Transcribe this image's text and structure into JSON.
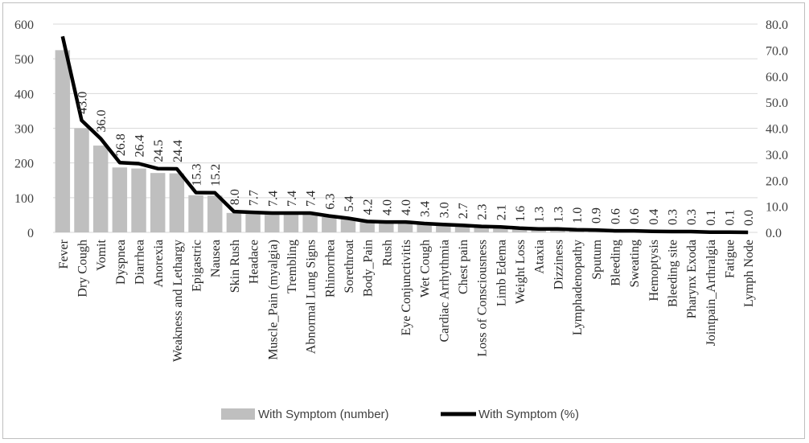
{
  "chart_data": {
    "type": "bar",
    "title": "",
    "xlabel": "",
    "ylabel": "",
    "y2label": "",
    "ylim": [
      0,
      600
    ],
    "y2lim": [
      0,
      80
    ],
    "yticks": [
      "0",
      "100",
      "200",
      "300",
      "400",
      "500",
      "600"
    ],
    "y2ticks": [
      "0.0",
      "10.0",
      "20.0",
      "30.0",
      "40.0",
      "50.0",
      "60.0",
      "70.0",
      "80.0"
    ],
    "grid": true,
    "legend_position": "bottom",
    "colors": {
      "bar": "#bfbfbf",
      "line": "#000000",
      "grid": "#d9d9d9"
    },
    "categories": [
      "Fever",
      "Dry Cough",
      "Vomit",
      "Dyspnea",
      "Diarrhea",
      "Anorexia",
      "Weakness and Lethargy",
      "Epigastric",
      "Nausea",
      "Skin Rush",
      "Headace",
      "Muscle_Pain (myalgia)",
      "Trembling",
      "Abnormal Lung Signs",
      "Rhinorrhea",
      "Sorethroat",
      "Body_Pain",
      "Rush",
      "Eye Conjunctivitis",
      "Wet Cough",
      "Cardiac Arrhythmia",
      "Chest pain",
      "Loss of Consciousness",
      "Limb Edema",
      "Weight Loss",
      "Ataxia",
      "Dizziness",
      "Lymphadenopathy",
      "Sputum",
      "Bleeding",
      "Sweating",
      "Hemoptysis",
      "Bleeding site",
      "Pharynx Exoda",
      "Jointpain_Arthralgia",
      "Fatigue",
      "Lymph Node"
    ],
    "series": [
      {
        "name": "With Symptom (number)",
        "type": "bar",
        "axis": "left",
        "values": [
          525,
          300,
          250,
          187,
          184,
          171,
          170,
          107,
          106,
          56,
          54,
          52,
          52,
          52,
          44,
          38,
          29,
          28,
          28,
          24,
          21,
          19,
          16,
          15,
          11,
          9,
          9,
          7,
          6,
          4,
          4,
          3,
          2,
          2,
          1,
          1,
          0
        ]
      },
      {
        "name": "With Symptom (%)",
        "type": "line",
        "axis": "right",
        "values": [
          75.3,
          43.0,
          36.0,
          26.8,
          26.4,
          24.5,
          24.4,
          15.3,
          15.2,
          8.0,
          7.7,
          7.4,
          7.4,
          7.4,
          6.3,
          5.4,
          4.2,
          4.0,
          4.0,
          3.4,
          3.0,
          2.7,
          2.3,
          2.1,
          1.6,
          1.3,
          1.3,
          1.0,
          0.9,
          0.6,
          0.6,
          0.4,
          0.3,
          0.3,
          0.1,
          0.1,
          0.0
        ]
      }
    ],
    "data_labels": [
      "",
      "43.0",
      "36.0",
      "26.8",
      "26.4",
      "24.5",
      "24.4",
      "15.3",
      "15.2",
      "8.0",
      "7.7",
      "7.4",
      "7.4",
      "7.4",
      "6.3",
      "5.4",
      "4.2",
      "4.0",
      "4.0",
      "3.4",
      "3.0",
      "2.7",
      "2.3",
      "2.1",
      "1.6",
      "1.3",
      "1.3",
      "1.0",
      "0.9",
      "0.6",
      "0.6",
      "0.4",
      "0.3",
      "0.3",
      "0.1",
      "0.1",
      "0.0"
    ]
  }
}
